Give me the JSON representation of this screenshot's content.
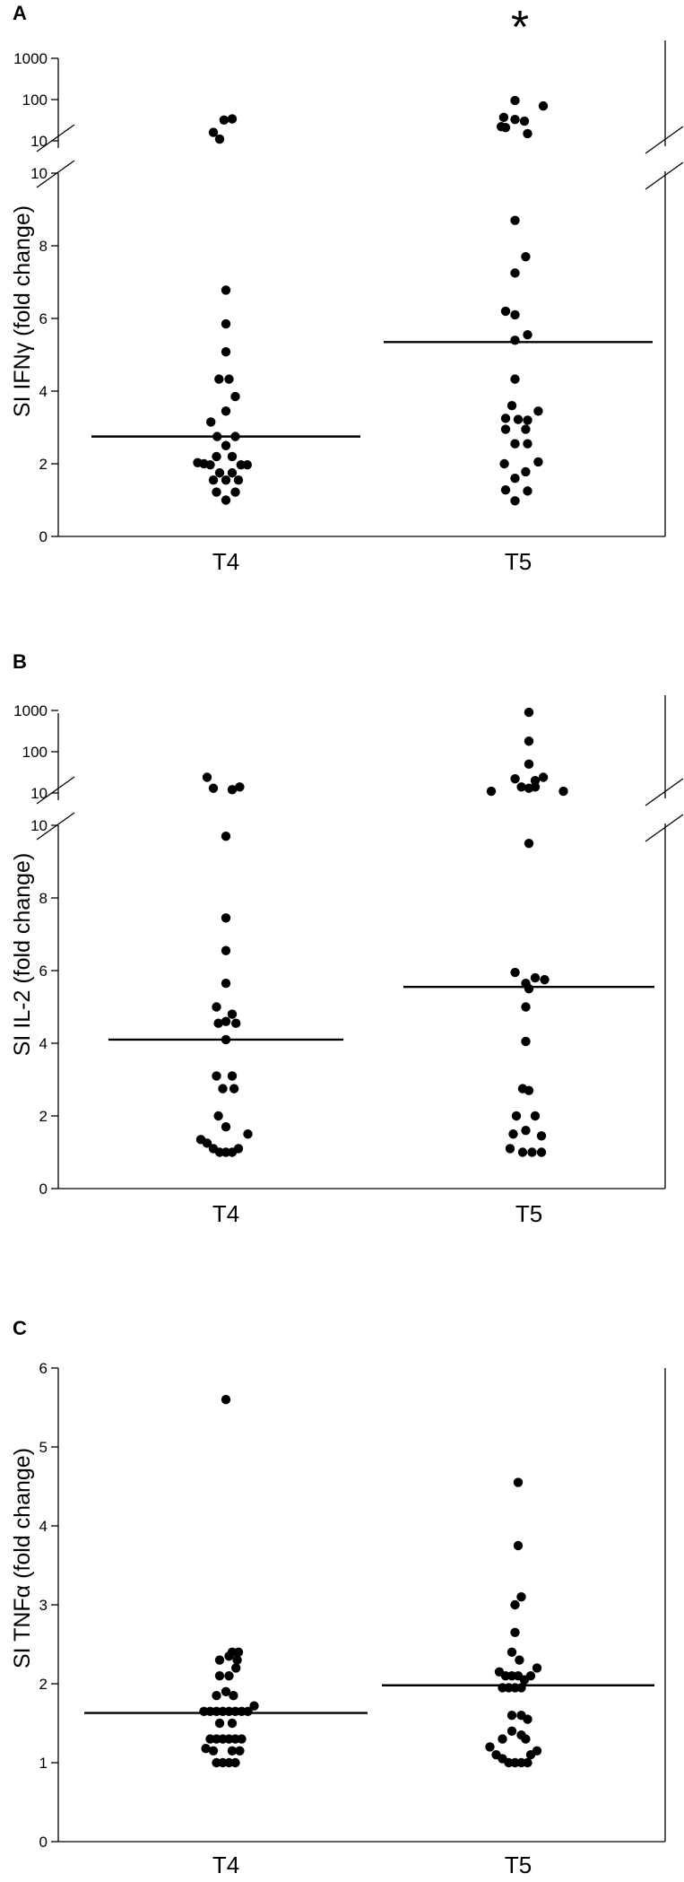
{
  "chart_data": [
    {
      "type": "scatter",
      "panel_label": "A",
      "ylabel": "SI IFNγ (fold change)",
      "categories": [
        "T4",
        "T5"
      ],
      "significance_marker": "*",
      "axis_break": true,
      "lower_ylim": [
        0,
        10
      ],
      "lower_yticks": [
        "0",
        "2",
        "4",
        "6",
        "8",
        "10"
      ],
      "upper_ylim": [
        10,
        1000
      ],
      "upper_scale": "log",
      "upper_yticks": [
        "10",
        "100",
        "1000"
      ],
      "medians": [
        2.75,
        5.35
      ],
      "series": [
        {
          "name": "T4",
          "points": [
            {
              "dx": -0.2,
              "y": 16
            },
            {
              "dx": -0.1,
              "y": 11
            },
            {
              "dx": -0.03,
              "y": 32
            },
            {
              "dx": 0.1,
              "y": 34
            },
            {
              "dx": 0.0,
              "y": 6.78
            },
            {
              "dx": 0.0,
              "y": 5.85
            },
            {
              "dx": 0.0,
              "y": 5.08
            },
            {
              "dx": -0.11,
              "y": 4.33
            },
            {
              "dx": 0.05,
              "y": 4.33
            },
            {
              "dx": 0.15,
              "y": 3.85
            },
            {
              "dx": 0.0,
              "y": 3.45
            },
            {
              "dx": -0.24,
              "y": 3.15
            },
            {
              "dx": -0.14,
              "y": 2.75
            },
            {
              "dx": 0.15,
              "y": 2.75
            },
            {
              "dx": 0.0,
              "y": 2.5
            },
            {
              "dx": -0.15,
              "y": 2.2
            },
            {
              "dx": 0.1,
              "y": 2.2
            },
            {
              "dx": -0.45,
              "y": 2.03
            },
            {
              "dx": -0.35,
              "y": 2.0
            },
            {
              "dx": -0.25,
              "y": 1.97
            },
            {
              "dx": 0.24,
              "y": 1.97
            },
            {
              "dx": 0.34,
              "y": 1.97
            },
            {
              "dx": -0.1,
              "y": 1.75
            },
            {
              "dx": 0.1,
              "y": 1.75
            },
            {
              "dx": -0.2,
              "y": 1.55
            },
            {
              "dx": 0.0,
              "y": 1.55
            },
            {
              "dx": 0.2,
              "y": 1.55
            },
            {
              "dx": -0.15,
              "y": 1.22
            },
            {
              "dx": 0.15,
              "y": 1.22
            },
            {
              "dx": 0.0,
              "y": 1.0
            }
          ]
        },
        {
          "name": "T5",
          "points": [
            {
              "dx": -0.05,
              "y": 95
            },
            {
              "dx": 0.4,
              "y": 70
            },
            {
              "dx": -0.23,
              "y": 37
            },
            {
              "dx": -0.05,
              "y": 33
            },
            {
              "dx": 0.1,
              "y": 30
            },
            {
              "dx": -0.27,
              "y": 22
            },
            {
              "dx": -0.2,
              "y": 21
            },
            {
              "dx": 0.15,
              "y": 15
            },
            {
              "dx": -0.05,
              "y": 8.7
            },
            {
              "dx": 0.12,
              "y": 7.7
            },
            {
              "dx": -0.05,
              "y": 7.25
            },
            {
              "dx": -0.2,
              "y": 6.2
            },
            {
              "dx": -0.05,
              "y": 6.1
            },
            {
              "dx": 0.15,
              "y": 5.55
            },
            {
              "dx": -0.05,
              "y": 5.4
            },
            {
              "dx": -0.05,
              "y": 4.33
            },
            {
              "dx": -0.1,
              "y": 3.6
            },
            {
              "dx": 0.32,
              "y": 3.45
            },
            {
              "dx": -0.2,
              "y": 3.25
            },
            {
              "dx": 0.0,
              "y": 3.22
            },
            {
              "dx": 0.15,
              "y": 3.2
            },
            {
              "dx": -0.2,
              "y": 2.95
            },
            {
              "dx": 0.12,
              "y": 2.95
            },
            {
              "dx": -0.05,
              "y": 2.55
            },
            {
              "dx": 0.15,
              "y": 2.55
            },
            {
              "dx": -0.22,
              "y": 2.0
            },
            {
              "dx": 0.32,
              "y": 2.05
            },
            {
              "dx": 0.12,
              "y": 1.78
            },
            {
              "dx": -0.05,
              "y": 1.6
            },
            {
              "dx": -0.2,
              "y": 1.28
            },
            {
              "dx": 0.15,
              "y": 1.25
            },
            {
              "dx": -0.05,
              "y": 0.98
            }
          ]
        }
      ]
    },
    {
      "type": "scatter",
      "panel_label": "B",
      "ylabel": "SI IL-2 (fold change)",
      "categories": [
        "T4",
        "T5"
      ],
      "axis_break": true,
      "lower_ylim": [
        0,
        10
      ],
      "lower_yticks": [
        "0",
        "2",
        "4",
        "6",
        "8",
        "10"
      ],
      "upper_ylim": [
        10,
        1000
      ],
      "upper_scale": "log",
      "upper_yticks": [
        "10",
        "100",
        "1000"
      ],
      "medians": [
        4.1,
        5.55
      ],
      "series": [
        {
          "name": "T4",
          "points": [
            {
              "dx": -0.3,
              "y": 24
            },
            {
              "dx": -0.2,
              "y": 13
            },
            {
              "dx": 0.1,
              "y": 12
            },
            {
              "dx": 0.22,
              "y": 14
            },
            {
              "dx": 0.0,
              "y": 9.7
            },
            {
              "dx": 0.0,
              "y": 7.45
            },
            {
              "dx": 0.0,
              "y": 6.55
            },
            {
              "dx": 0.0,
              "y": 5.65
            },
            {
              "dx": -0.15,
              "y": 5.0
            },
            {
              "dx": 0.1,
              "y": 4.8
            },
            {
              "dx": -0.12,
              "y": 4.55
            },
            {
              "dx": 0.0,
              "y": 4.6
            },
            {
              "dx": 0.16,
              "y": 4.55
            },
            {
              "dx": 0.0,
              "y": 4.1
            },
            {
              "dx": -0.15,
              "y": 3.1
            },
            {
              "dx": 0.1,
              "y": 3.1
            },
            {
              "dx": -0.05,
              "y": 2.75
            },
            {
              "dx": 0.13,
              "y": 2.75
            },
            {
              "dx": -0.12,
              "y": 2.0
            },
            {
              "dx": 0.0,
              "y": 1.7
            },
            {
              "dx": 0.35,
              "y": 1.5
            },
            {
              "dx": -0.4,
              "y": 1.35
            },
            {
              "dx": -0.3,
              "y": 1.25
            },
            {
              "dx": -0.2,
              "y": 1.1
            },
            {
              "dx": -0.1,
              "y": 1.0
            },
            {
              "dx": 0.0,
              "y": 1.0
            },
            {
              "dx": 0.1,
              "y": 1.0
            },
            {
              "dx": 0.2,
              "y": 1.1
            }
          ]
        },
        {
          "name": "T5",
          "points": [
            {
              "dx": -0.6,
              "y": 11
            },
            {
              "dx": 0.55,
              "y": 11
            },
            {
              "dx": 0.0,
              "y": 900
            },
            {
              "dx": 0.0,
              "y": 180
            },
            {
              "dx": 0.0,
              "y": 50
            },
            {
              "dx": -0.22,
              "y": 22
            },
            {
              "dx": 0.1,
              "y": 20
            },
            {
              "dx": 0.23,
              "y": 24
            },
            {
              "dx": -0.12,
              "y": 14
            },
            {
              "dx": 0.0,
              "y": 13
            },
            {
              "dx": 0.1,
              "y": 14
            },
            {
              "dx": 0.0,
              "y": 9.5
            },
            {
              "dx": -0.22,
              "y": 5.95
            },
            {
              "dx": 0.1,
              "y": 5.8
            },
            {
              "dx": -0.05,
              "y": 5.65
            },
            {
              "dx": 0.25,
              "y": 5.75
            },
            {
              "dx": 0.0,
              "y": 5.5
            },
            {
              "dx": -0.05,
              "y": 5.0
            },
            {
              "dx": -0.05,
              "y": 4.05
            },
            {
              "dx": -0.1,
              "y": 2.75
            },
            {
              "dx": 0.0,
              "y": 2.7
            },
            {
              "dx": -0.2,
              "y": 2.0
            },
            {
              "dx": 0.1,
              "y": 2.0
            },
            {
              "dx": -0.05,
              "y": 1.6
            },
            {
              "dx": -0.25,
              "y": 1.5
            },
            {
              "dx": 0.2,
              "y": 1.45
            },
            {
              "dx": -0.3,
              "y": 1.1
            },
            {
              "dx": -0.1,
              "y": 1.0
            },
            {
              "dx": 0.05,
              "y": 1.0
            },
            {
              "dx": 0.2,
              "y": 1.0
            }
          ]
        }
      ]
    },
    {
      "type": "scatter",
      "panel_label": "C",
      "ylabel": "SI TNFα (fold change)",
      "categories": [
        "T4",
        "T5"
      ],
      "axis_break": false,
      "ylim": [
        0,
        6
      ],
      "yticks": [
        "0",
        "1",
        "2",
        "3",
        "4",
        "5",
        "6"
      ],
      "medians": [
        1.63,
        1.98
      ],
      "series": [
        {
          "name": "T4",
          "points": [
            {
              "dx": 0.0,
              "y": 5.6
            },
            {
              "dx": 0.1,
              "y": 2.4
            },
            {
              "dx": 0.2,
              "y": 2.4
            },
            {
              "dx": -0.1,
              "y": 2.3
            },
            {
              "dx": 0.05,
              "y": 2.35
            },
            {
              "dx": 0.18,
              "y": 2.3
            },
            {
              "dx": -0.1,
              "y": 2.1
            },
            {
              "dx": 0.05,
              "y": 2.1
            },
            {
              "dx": 0.16,
              "y": 2.2
            },
            {
              "dx": 0.0,
              "y": 1.9
            },
            {
              "dx": -0.15,
              "y": 1.85
            },
            {
              "dx": 0.12,
              "y": 1.85
            },
            {
              "dx": -0.35,
              "y": 1.65
            },
            {
              "dx": -0.25,
              "y": 1.65
            },
            {
              "dx": -0.15,
              "y": 1.65
            },
            {
              "dx": -0.05,
              "y": 1.65
            },
            {
              "dx": 0.05,
              "y": 1.65
            },
            {
              "dx": 0.15,
              "y": 1.65
            },
            {
              "dx": 0.25,
              "y": 1.65
            },
            {
              "dx": 0.35,
              "y": 1.65
            },
            {
              "dx": 0.45,
              "y": 1.72
            },
            {
              "dx": -0.1,
              "y": 1.5
            },
            {
              "dx": 0.1,
              "y": 1.5
            },
            {
              "dx": -0.25,
              "y": 1.3
            },
            {
              "dx": -0.15,
              "y": 1.3
            },
            {
              "dx": -0.05,
              "y": 1.3
            },
            {
              "dx": 0.05,
              "y": 1.3
            },
            {
              "dx": 0.15,
              "y": 1.3
            },
            {
              "dx": 0.25,
              "y": 1.3
            },
            {
              "dx": -0.32,
              "y": 1.18
            },
            {
              "dx": -0.2,
              "y": 1.15
            },
            {
              "dx": 0.1,
              "y": 1.15
            },
            {
              "dx": 0.22,
              "y": 1.15
            },
            {
              "dx": -0.15,
              "y": 1.0
            },
            {
              "dx": -0.05,
              "y": 1.0
            },
            {
              "dx": 0.05,
              "y": 1.0
            },
            {
              "dx": 0.15,
              "y": 1.0
            }
          ]
        },
        {
          "name": "T5",
          "points": [
            {
              "dx": 0.0,
              "y": 4.55
            },
            {
              "dx": 0.0,
              "y": 3.75
            },
            {
              "dx": 0.05,
              "y": 3.1
            },
            {
              "dx": -0.05,
              "y": 3.0
            },
            {
              "dx": -0.05,
              "y": 2.65
            },
            {
              "dx": -0.1,
              "y": 2.4
            },
            {
              "dx": 0.02,
              "y": 2.3
            },
            {
              "dx": -0.3,
              "y": 2.15
            },
            {
              "dx": -0.2,
              "y": 2.1
            },
            {
              "dx": -0.1,
              "y": 2.1
            },
            {
              "dx": 0.0,
              "y": 2.1
            },
            {
              "dx": 0.1,
              "y": 2.05
            },
            {
              "dx": 0.2,
              "y": 2.1
            },
            {
              "dx": 0.3,
              "y": 2.2
            },
            {
              "dx": -0.25,
              "y": 1.95
            },
            {
              "dx": -0.15,
              "y": 1.95
            },
            {
              "dx": -0.05,
              "y": 1.95
            },
            {
              "dx": 0.05,
              "y": 1.95
            },
            {
              "dx": -0.1,
              "y": 1.6
            },
            {
              "dx": 0.05,
              "y": 1.6
            },
            {
              "dx": 0.15,
              "y": 1.55
            },
            {
              "dx": -0.1,
              "y": 1.4
            },
            {
              "dx": 0.05,
              "y": 1.35
            },
            {
              "dx": -0.25,
              "y": 1.3
            },
            {
              "dx": 0.12,
              "y": 1.3
            },
            {
              "dx": -0.45,
              "y": 1.2
            },
            {
              "dx": -0.35,
              "y": 1.1
            },
            {
              "dx": 0.2,
              "y": 1.1
            },
            {
              "dx": 0.3,
              "y": 1.15
            },
            {
              "dx": -0.25,
              "y": 1.05
            },
            {
              "dx": -0.15,
              "y": 1.0
            },
            {
              "dx": -0.05,
              "y": 1.0
            },
            {
              "dx": 0.05,
              "y": 1.0
            },
            {
              "dx": 0.15,
              "y": 1.0
            }
          ]
        }
      ]
    }
  ]
}
